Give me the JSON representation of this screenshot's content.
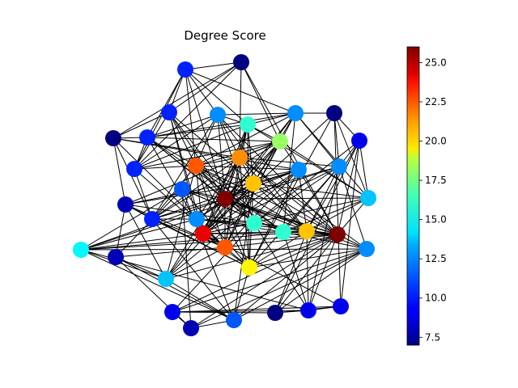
{
  "chart_data": {
    "type": "network",
    "title": "Degree Score",
    "colorbar": {
      "colormap": "jet",
      "vmin": 7,
      "vmax": 26,
      "ticks": [
        7.5,
        10.0,
        12.5,
        15.0,
        17.5,
        20.0,
        22.5,
        25.0
      ],
      "tick_labels": [
        "7.5",
        "10.0",
        "12.5",
        "15.0",
        "17.5",
        "20.0",
        "22.5",
        "25.0"
      ]
    },
    "nodes": [
      {
        "id": 0,
        "degree": 10
      },
      {
        "id": 1,
        "degree": 7
      },
      {
        "id": 2,
        "degree": 10
      },
      {
        "id": 3,
        "degree": 12
      },
      {
        "id": 4,
        "degree": 15
      },
      {
        "id": 5,
        "degree": 10
      },
      {
        "id": 6,
        "degree": 7
      },
      {
        "id": 7,
        "degree": 10
      },
      {
        "id": 8,
        "degree": 11
      },
      {
        "id": 9,
        "degree": 17
      },
      {
        "id": 10,
        "degree": 8
      },
      {
        "id": 11,
        "degree": 12
      },
      {
        "id": 12,
        "degree": 22
      },
      {
        "id": 13,
        "degree": 21
      },
      {
        "id": 14,
        "degree": 10
      },
      {
        "id": 15,
        "degree": 12
      },
      {
        "id": 16,
        "degree": 12
      },
      {
        "id": 17,
        "degree": 20
      },
      {
        "id": 18,
        "degree": 26
      },
      {
        "id": 19,
        "degree": 12
      },
      {
        "id": 20,
        "degree": 13
      },
      {
        "id": 21,
        "degree": 15
      },
      {
        "id": 22,
        "degree": 15
      },
      {
        "id": 23,
        "degree": 24
      },
      {
        "id": 24,
        "degree": 19
      },
      {
        "id": 25,
        "degree": 22
      },
      {
        "id": 26,
        "degree": 13
      },
      {
        "id": 27,
        "degree": 11
      },
      {
        "id": 28,
        "degree": 9
      },
      {
        "id": 29,
        "degree": 7
      },
      {
        "id": 30,
        "degree": 9
      },
      {
        "id": 31,
        "degree": 26
      },
      {
        "id": 32,
        "degree": 20
      },
      {
        "id": 33,
        "degree": 14
      },
      {
        "id": 34,
        "degree": 8
      },
      {
        "id": 35,
        "degree": 9
      },
      {
        "id": 36,
        "degree": 12
      },
      {
        "id": 37,
        "degree": 7
      },
      {
        "id": 38,
        "degree": 9
      },
      {
        "id": 39,
        "degree": 8
      }
    ],
    "edges": [
      [
        18,
        0
      ],
      [
        18,
        2
      ],
      [
        18,
        3
      ],
      [
        18,
        4
      ],
      [
        18,
        5
      ],
      [
        18,
        8
      ],
      [
        18,
        9
      ],
      [
        18,
        11
      ],
      [
        18,
        12
      ],
      [
        18,
        13
      ],
      [
        18,
        14
      ],
      [
        18,
        15
      ],
      [
        18,
        16
      ],
      [
        18,
        17
      ],
      [
        18,
        19
      ],
      [
        18,
        20
      ],
      [
        18,
        21
      ],
      [
        18,
        22
      ],
      [
        18,
        23
      ],
      [
        18,
        24
      ],
      [
        18,
        25
      ],
      [
        18,
        26
      ],
      [
        18,
        31
      ],
      [
        18,
        32
      ],
      [
        18,
        33
      ],
      [
        18,
        36
      ],
      [
        31,
        1
      ],
      [
        31,
        3
      ],
      [
        31,
        8
      ],
      [
        31,
        10
      ],
      [
        31,
        12
      ],
      [
        31,
        13
      ],
      [
        31,
        15
      ],
      [
        31,
        16
      ],
      [
        31,
        17
      ],
      [
        31,
        20
      ],
      [
        31,
        21
      ],
      [
        31,
        22
      ],
      [
        31,
        23
      ],
      [
        31,
        24
      ],
      [
        31,
        25
      ],
      [
        31,
        26
      ],
      [
        31,
        27
      ],
      [
        31,
        28
      ],
      [
        31,
        30
      ],
      [
        31,
        32
      ],
      [
        31,
        33
      ],
      [
        31,
        34
      ],
      [
        31,
        35
      ],
      [
        31,
        36
      ],
      [
        31,
        37
      ],
      [
        23,
        2
      ],
      [
        23,
        4
      ],
      [
        23,
        5
      ],
      [
        23,
        9
      ],
      [
        23,
        11
      ],
      [
        23,
        12
      ],
      [
        23,
        13
      ],
      [
        23,
        15
      ],
      [
        23,
        16
      ],
      [
        23,
        17
      ],
      [
        23,
        19
      ],
      [
        23,
        20
      ],
      [
        23,
        21
      ],
      [
        23,
        22
      ],
      [
        23,
        24
      ],
      [
        23,
        25
      ],
      [
        23,
        29
      ],
      [
        23,
        32
      ],
      [
        23,
        33
      ],
      [
        23,
        38
      ],
      [
        12,
        0
      ],
      [
        12,
        2
      ],
      [
        12,
        3
      ],
      [
        12,
        5
      ],
      [
        12,
        7
      ],
      [
        12,
        9
      ],
      [
        12,
        11
      ],
      [
        12,
        13
      ],
      [
        12,
        14
      ],
      [
        12,
        16
      ],
      [
        12,
        17
      ],
      [
        12,
        21
      ],
      [
        12,
        22
      ],
      [
        12,
        24
      ],
      [
        12,
        25
      ],
      [
        12,
        26
      ],
      [
        12,
        32
      ],
      [
        13,
        1
      ],
      [
        13,
        3
      ],
      [
        13,
        4
      ],
      [
        13,
        6
      ],
      [
        13,
        9
      ],
      [
        13,
        14
      ],
      [
        13,
        15
      ],
      [
        13,
        17
      ],
      [
        13,
        19
      ],
      [
        13,
        24
      ],
      [
        13,
        25
      ],
      [
        13,
        26
      ],
      [
        13,
        32
      ],
      [
        13,
        36
      ],
      [
        25,
        4
      ],
      [
        25,
        6
      ],
      [
        25,
        7
      ],
      [
        25,
        9
      ],
      [
        25,
        10
      ],
      [
        25,
        11
      ],
      [
        25,
        14
      ],
      [
        25,
        15
      ],
      [
        25,
        16
      ],
      [
        25,
        17
      ],
      [
        25,
        24
      ],
      [
        25,
        26
      ],
      [
        25,
        39
      ],
      [
        17,
        2
      ],
      [
        17,
        4
      ],
      [
        17,
        9
      ],
      [
        17,
        10
      ],
      [
        17,
        11
      ],
      [
        17,
        15
      ],
      [
        17,
        16
      ],
      [
        17,
        20
      ],
      [
        17,
        24
      ],
      [
        17,
        26
      ],
      [
        17,
        27
      ],
      [
        17,
        32
      ],
      [
        32,
        3
      ],
      [
        32,
        15
      ],
      [
        32,
        16
      ],
      [
        32,
        19
      ],
      [
        32,
        20
      ],
      [
        32,
        22
      ],
      [
        32,
        24
      ],
      [
        32,
        28
      ],
      [
        32,
        30
      ],
      [
        32,
        33
      ],
      [
        32,
        37
      ],
      [
        24,
        4
      ],
      [
        24,
        8
      ],
      [
        24,
        10
      ],
      [
        24,
        14
      ],
      [
        24,
        16
      ],
      [
        24,
        19
      ],
      [
        24,
        27
      ],
      [
        24,
        29
      ],
      [
        24,
        36
      ],
      [
        9,
        1
      ],
      [
        9,
        4
      ],
      [
        9,
        5
      ],
      [
        9,
        7
      ],
      [
        9,
        10
      ],
      [
        9,
        14
      ],
      [
        9,
        16
      ],
      [
        9,
        20
      ],
      [
        4,
        0
      ],
      [
        4,
        3
      ],
      [
        4,
        5
      ],
      [
        4,
        7
      ],
      [
        4,
        11
      ],
      [
        4,
        20
      ],
      [
        21,
        2
      ],
      [
        21,
        3
      ],
      [
        21,
        5
      ],
      [
        21,
        15
      ],
      [
        21,
        19
      ],
      [
        21,
        28
      ],
      [
        21,
        30
      ],
      [
        21,
        35
      ],
      [
        22,
        5
      ],
      [
        22,
        8
      ],
      [
        22,
        11
      ],
      [
        22,
        15
      ],
      [
        22,
        19
      ],
      [
        22,
        20
      ],
      [
        22,
        28
      ],
      [
        33,
        8
      ],
      [
        33,
        15
      ],
      [
        33,
        19
      ],
      [
        33,
        26
      ],
      [
        33,
        27
      ],
      [
        33,
        28
      ],
      [
        33,
        36
      ],
      [
        36,
        19
      ],
      [
        36,
        22
      ],
      [
        36,
        27
      ],
      [
        36,
        34
      ],
      [
        36,
        35
      ],
      [
        36,
        37
      ],
      [
        26,
        10
      ],
      [
        26,
        16
      ],
      [
        26,
        27
      ],
      [
        26,
        39
      ],
      [
        3,
        0
      ],
      [
        3,
        5
      ],
      [
        3,
        7
      ],
      [
        3,
        11
      ],
      [
        3,
        14
      ],
      [
        20,
        29
      ],
      [
        20,
        30
      ],
      [
        20,
        11
      ],
      [
        11,
        0
      ],
      [
        11,
        5
      ],
      [
        11,
        19
      ],
      [
        11,
        29
      ],
      [
        15,
        2
      ],
      [
        15,
        14
      ],
      [
        16,
        6
      ],
      [
        16,
        10
      ],
      [
        16,
        14
      ],
      [
        19,
        29
      ],
      [
        19,
        30
      ],
      [
        19,
        28
      ],
      [
        8,
        22
      ],
      [
        8,
        27
      ],
      [
        8,
        34
      ],
      [
        0,
        1
      ],
      [
        0,
        2
      ],
      [
        0,
        5
      ],
      [
        0,
        7
      ],
      [
        1,
        2
      ],
      [
        1,
        6
      ],
      [
        1,
        7
      ],
      [
        2,
        6
      ],
      [
        2,
        7
      ],
      [
        5,
        7
      ],
      [
        5,
        6
      ],
      [
        6,
        10
      ],
      [
        6,
        14
      ],
      [
        7,
        14
      ],
      [
        10,
        14
      ],
      [
        10,
        39
      ],
      [
        14,
        27
      ],
      [
        27,
        39
      ],
      [
        27,
        34
      ],
      [
        28,
        35
      ],
      [
        28,
        37
      ],
      [
        28,
        38
      ],
      [
        29,
        30
      ],
      [
        30,
        37
      ],
      [
        30,
        38
      ],
      [
        34,
        35
      ],
      [
        34,
        39
      ],
      [
        35,
        37
      ],
      [
        35,
        38
      ],
      [
        37,
        38
      ],
      [
        38,
        29
      ],
      [
        39,
        8
      ]
    ]
  }
}
